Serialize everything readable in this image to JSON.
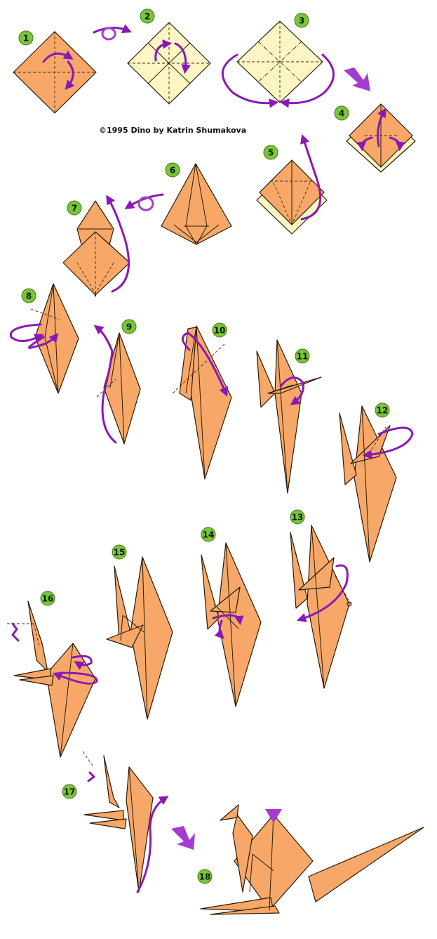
{
  "credit": "©1995 Dino by Katrin Shumakova",
  "colors": {
    "paper": "#f7a868",
    "paper_back": "#fbf6c4",
    "arrow": "#8a18b8",
    "badge": "#7ac43a"
  },
  "steps": [
    {
      "label": "1"
    },
    {
      "label": "2"
    },
    {
      "label": "3"
    },
    {
      "label": "4"
    },
    {
      "label": "5"
    },
    {
      "label": "6"
    },
    {
      "label": "7"
    },
    {
      "label": "8"
    },
    {
      "label": "9"
    },
    {
      "label": "10"
    },
    {
      "label": "11"
    },
    {
      "label": "12"
    },
    {
      "label": "13"
    },
    {
      "label": "14"
    },
    {
      "label": "15"
    },
    {
      "label": "16"
    },
    {
      "label": "17"
    },
    {
      "label": "18"
    }
  ]
}
